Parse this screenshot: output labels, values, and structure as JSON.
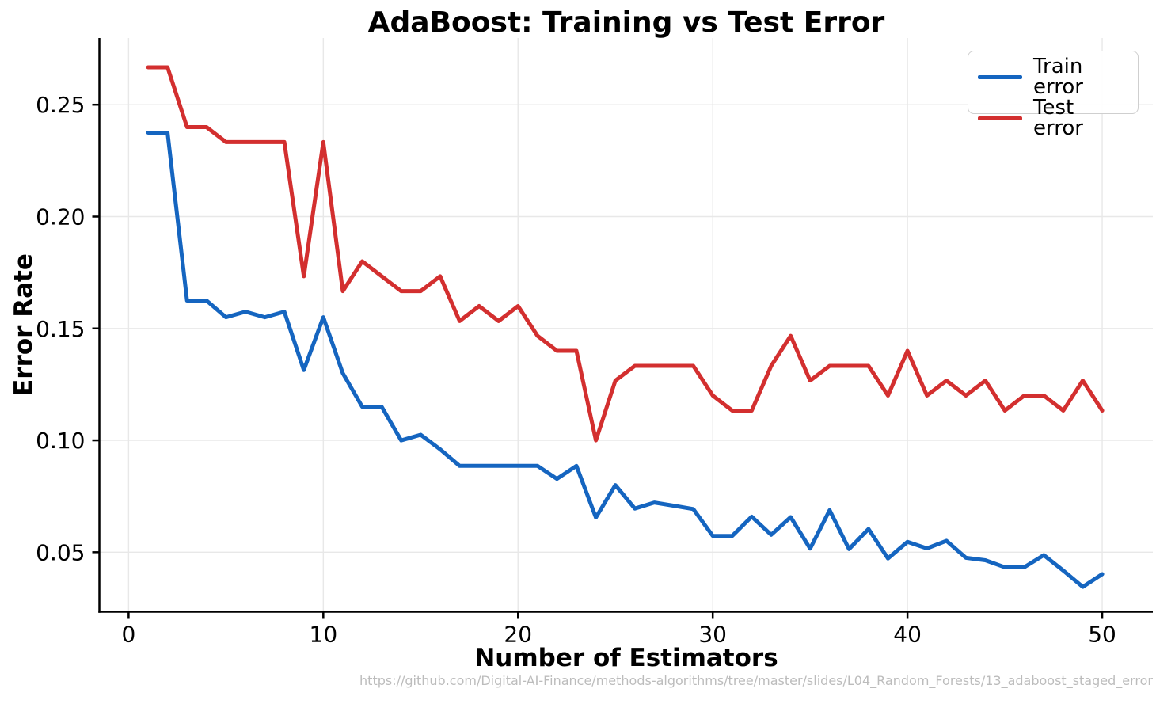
{
  "chart": {
    "title": "AdaBoost: Training vs Test Error",
    "xlabel": "Number of Estimators",
    "ylabel": "Error Rate"
  },
  "footer": {
    "url": "https://github.com/Digital-AI-Finance/methods-algorithms/tree/master/slides/L04_Random_Forests/13_adaboost_staged_error"
  },
  "colors": {
    "train_line": "#1565C0",
    "test_line": "#D32F2F",
    "grid": "#e8e8e8",
    "spine": "#000000",
    "tick_label": "#000000",
    "footer_text": "#bcbcbc"
  },
  "chart_data": {
    "type": "line",
    "title": "AdaBoost: Training vs Test Error",
    "xlabel": "Number of Estimators",
    "ylabel": "Error Rate",
    "x": [
      1,
      2,
      3,
      4,
      5,
      6,
      7,
      8,
      9,
      10,
      11,
      12,
      13,
      14,
      15,
      16,
      17,
      18,
      19,
      20,
      21,
      22,
      23,
      24,
      25,
      26,
      27,
      28,
      29,
      30,
      31,
      32,
      33,
      34,
      35,
      36,
      37,
      38,
      39,
      40,
      41,
      42,
      43,
      44,
      45,
      46,
      47,
      48,
      49,
      50
    ],
    "series": [
      {
        "name": "Train error",
        "color": "#1565C0",
        "values": [
          0.2375,
          0.2375,
          0.1625,
          0.1625,
          0.155,
          0.1575,
          0.155,
          0.1575,
          0.1314,
          0.155,
          0.13,
          0.115,
          0.115,
          0.1,
          0.1025,
          0.096,
          0.0886,
          0.0886,
          0.0886,
          0.0886,
          0.0886,
          0.0828,
          0.0886,
          0.0655,
          0.08,
          0.0695,
          0.0722,
          0.0708,
          0.0693,
          0.0573,
          0.0573,
          0.0659,
          0.0578,
          0.0657,
          0.0516,
          0.0688,
          0.0514,
          0.0604,
          0.0472,
          0.0546,
          0.0517,
          0.0551,
          0.0475,
          0.0464,
          0.0433,
          0.0433,
          0.0487,
          0.0418,
          0.0345,
          0.0402
        ]
      },
      {
        "name": "Test error",
        "color": "#D32F2F",
        "values": [
          0.2667,
          0.2667,
          0.24,
          0.24,
          0.2333,
          0.2333,
          0.2333,
          0.2333,
          0.1733,
          0.2333,
          0.1667,
          0.18,
          0.1733,
          0.1667,
          0.1667,
          0.1733,
          0.1533,
          0.16,
          0.1533,
          0.16,
          0.1467,
          0.14,
          0.14,
          0.1,
          0.1267,
          0.1333,
          0.1333,
          0.1333,
          0.1333,
          0.12,
          0.1133,
          0.1133,
          0.1333,
          0.1467,
          0.1267,
          0.1333,
          0.1333,
          0.1333,
          0.12,
          0.14,
          0.12,
          0.1267,
          0.12,
          0.1267,
          0.1133,
          0.12,
          0.12,
          0.1133,
          0.1267,
          0.1133
        ]
      }
    ],
    "xlim": [
      -1.5,
      52.6
    ],
    "ylim": [
      0.0234,
      0.2798
    ],
    "x_ticks": [
      0,
      10,
      20,
      30,
      40,
      50
    ],
    "y_ticks": [
      0.05,
      0.1,
      0.15,
      0.2,
      0.25
    ],
    "grid": true,
    "legend_position": "upper right",
    "line_width": 5
  }
}
